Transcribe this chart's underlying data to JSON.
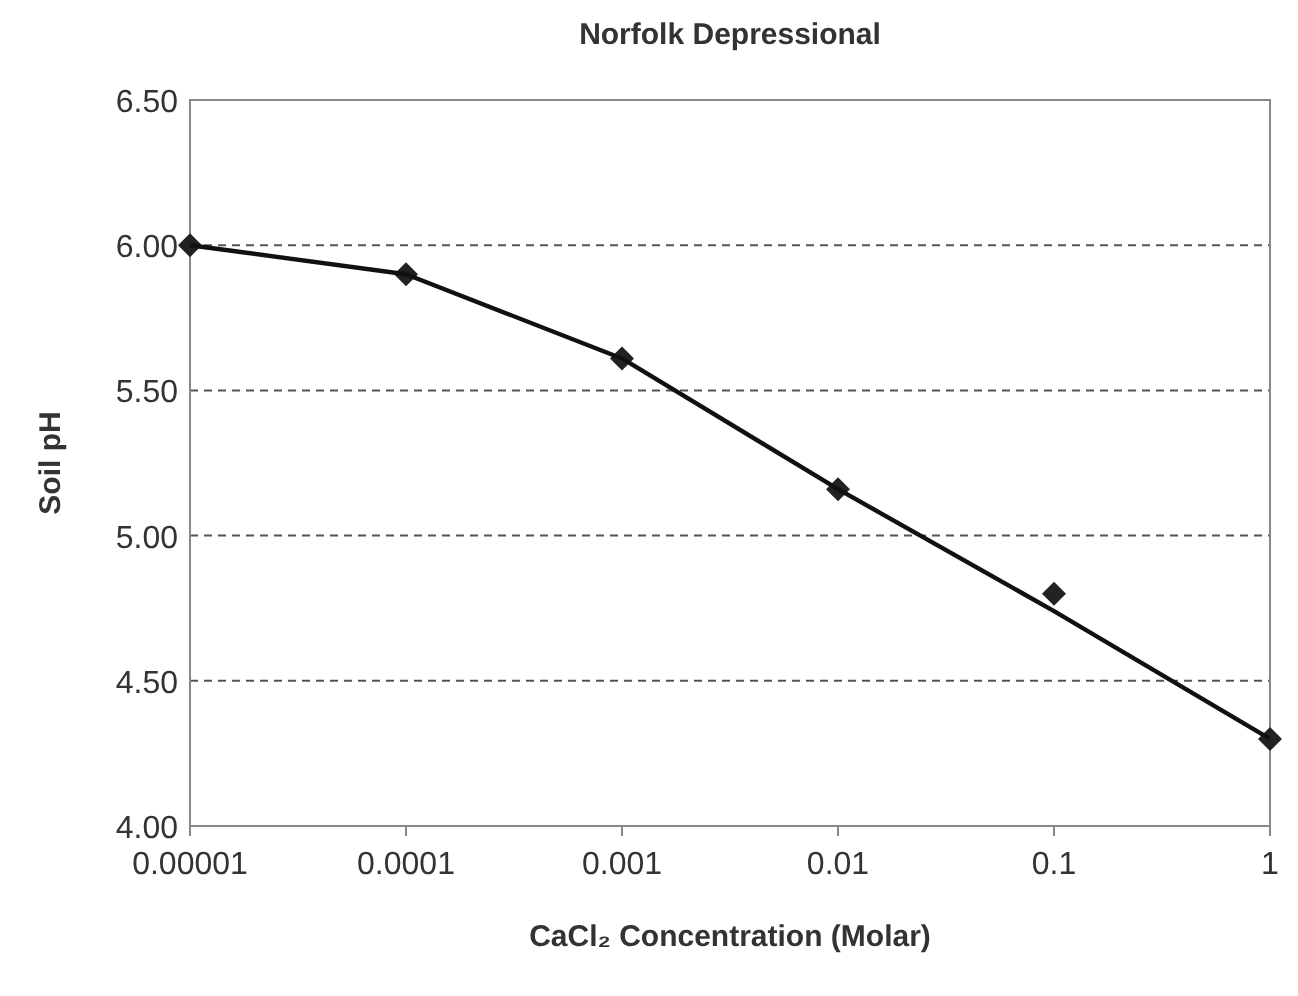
{
  "chart_data": {
    "type": "scatter",
    "title": "Norfolk Depressional",
    "xlabel": "CaCl₂ Concentration (Molar)",
    "ylabel": "Soil pH",
    "log": "x",
    "grid": "y",
    "x": [
      1e-05,
      0.0001,
      0.001,
      0.01,
      0.1,
      1
    ],
    "series": [
      {
        "color": "#222222",
        "marker": "diamond",
        "values": [
          6.0,
          5.9,
          5.61,
          5.16,
          4.8,
          4.3
        ]
      },
      {
        "type": "line",
        "color": "#111111",
        "marker": "none",
        "line_style": "solid",
        "x": [
          1e-05,
          0.0001,
          0.001,
          0.01,
          0.1,
          1
        ],
        "values": [
          6.0,
          5.9,
          5.61,
          5.16,
          4.74,
          4.3
        ]
      }
    ],
    "xlim": [
      1e-05,
      1
    ],
    "xticks": [
      {
        "value": 1e-05,
        "label": "0.00001"
      },
      0.0001,
      0.001,
      0.01,
      0.1,
      1
    ],
    "ylim": [
      4.0,
      6.5
    ],
    "yticks": [
      {
        "value": 4.0,
        "label": "4.00"
      },
      {
        "value": 4.5,
        "label": "4.50"
      },
      {
        "value": 5.0,
        "label": "5.00"
      },
      {
        "value": 5.5,
        "label": "5.50"
      },
      {
        "value": 6.0,
        "label": "6.00"
      },
      {
        "value": 6.5,
        "label": "6.50"
      }
    ]
  }
}
